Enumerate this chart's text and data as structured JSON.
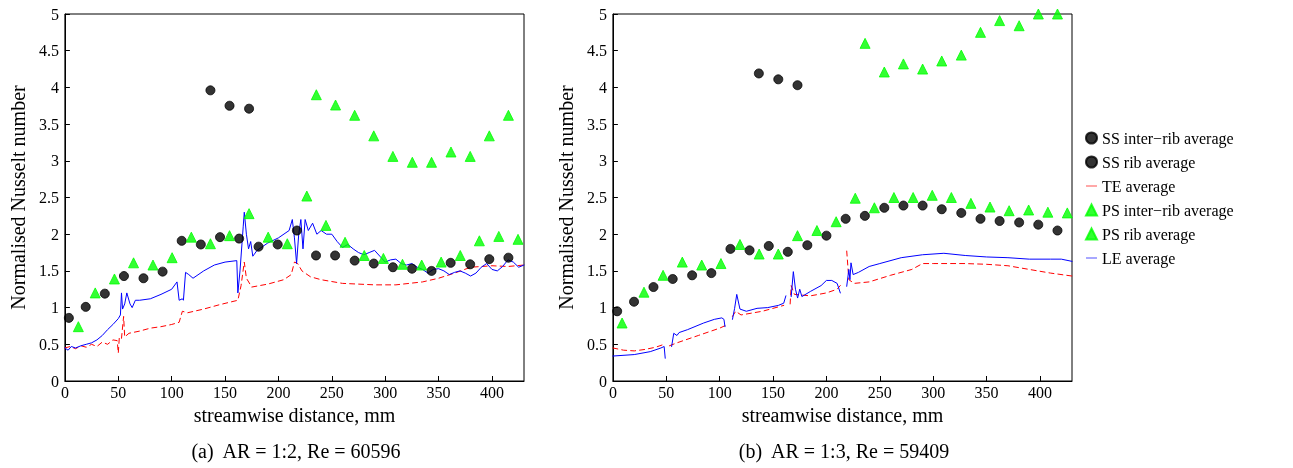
{
  "chart_data": [
    {
      "type": "scatter",
      "title": "(a)  AR = 1:2, Re = 60596",
      "xlabel": "streamwise distance, mm",
      "ylabel": "Normalised Nusselt number",
      "xlim": [
        0,
        430
      ],
      "xticks": [
        0,
        50,
        100,
        150,
        200,
        250,
        300,
        350,
        400
      ],
      "ylim": [
        0,
        5
      ],
      "yticks": [
        0,
        0.5,
        1,
        1.5,
        2,
        2.5,
        3,
        3.5,
        4,
        4.5,
        5
      ],
      "grid": false,
      "legend": false,
      "series": [
        {
          "type": "scatter",
          "color": "#000000",
          "marker": "circle",
          "x": [
            3.7,
            19.5,
            37.4,
            55.3,
            73.6,
            91.5,
            109.4,
            127.3,
            145.3,
            163.2,
            181.4,
            199.3,
            217.3,
            235.2,
            253.1,
            271.4,
            289.3,
            307.2,
            325.1,
            343.4,
            361.3,
            379.6,
            397.5,
            415.4
          ],
          "values": [
            0.86,
            1.01,
            1.19,
            1.43,
            1.4,
            1.49,
            1.91,
            1.86,
            1.96,
            1.94,
            1.83,
            1.86,
            2.05,
            1.71,
            1.71,
            1.64,
            1.6,
            1.55,
            1.53,
            1.5,
            1.61,
            1.59,
            1.66,
            1.68
          ]
        },
        {
          "type": "scatter",
          "color": "#000000",
          "marker": "circle",
          "x": [
            136.3,
            154.2,
            172.5
          ],
          "values": [
            3.96,
            3.75,
            3.71
          ]
        },
        {
          "type": "line",
          "color": "#ff0000",
          "marker": "none",
          "line_style": "dashed",
          "x": [
            0,
            5,
            10,
            15,
            20,
            25,
            30,
            35,
            40,
            45,
            49,
            50,
            51,
            53,
            55,
            56,
            60,
            70,
            80,
            90,
            100,
            107,
            110,
            115,
            130,
            145,
            162,
            165,
            168,
            170,
            175,
            190,
            205,
            212,
            215,
            218,
            222,
            230,
            240,
            260,
            290,
            310,
            335,
            350,
            365,
            380,
            400,
            415,
            430
          ],
          "values": [
            0.45,
            0.47,
            0.44,
            0.48,
            0.46,
            0.5,
            0.47,
            0.53,
            0.5,
            0.56,
            0.55,
            0.38,
            0.6,
            0.58,
            0.88,
            0.6,
            0.65,
            0.68,
            0.72,
            0.74,
            0.77,
            0.8,
            0.95,
            0.93,
            0.98,
            1.04,
            1.1,
            1.3,
            1.62,
            1.4,
            1.28,
            1.32,
            1.38,
            1.45,
            1.62,
            1.6,
            1.5,
            1.42,
            1.38,
            1.33,
            1.31,
            1.31,
            1.35,
            1.4,
            1.47,
            1.55,
            1.57,
            1.56,
            1.58
          ]
        },
        {
          "type": "scatter",
          "color": "#00ff00",
          "marker": "triangle",
          "x": [
            12.6,
            28.4,
            46.4,
            64.3,
            82.5,
            100.4,
            118.4,
            136.3,
            154.2,
            172.5,
            190.4,
            208.3,
            226.6,
            244.5,
            262.4,
            280.4,
            298.3,
            316.2,
            334.2,
            352.4,
            370.3,
            388.2,
            406.4,
            424.4
          ],
          "values": [
            0.74,
            1.2,
            1.39,
            1.61,
            1.58,
            1.68,
            1.96,
            1.87,
            1.98,
            2.28,
            1.96,
            1.87,
            2.52,
            2.12,
            1.89,
            1.71,
            1.67,
            1.59,
            1.58,
            1.62,
            1.71,
            1.91,
            1.97,
            1.93
          ]
        },
        {
          "type": "scatter",
          "color": "#00ff00",
          "marker": "triangle",
          "x": [
            235.5,
            253.5,
            271.4,
            289.3,
            307.2,
            325.4,
            343.4,
            361.6,
            379.6,
            397.5,
            415.4
          ],
          "values": [
            3.9,
            3.76,
            3.62,
            3.34,
            3.06,
            2.98,
            2.98,
            3.12,
            3.06,
            3.34,
            3.62
          ]
        },
        {
          "type": "line",
          "color": "#0000ff",
          "marker": "none",
          "line_style": "solid",
          "x": [
            0,
            3,
            6,
            10,
            15,
            20,
            25,
            30,
            35,
            40,
            45,
            50,
            52,
            53,
            54,
            56,
            58,
            61,
            63,
            66,
            70,
            80,
            90,
            100,
            105,
            107,
            110,
            111,
            113,
            116,
            120,
            130,
            140,
            150,
            161,
            162,
            164,
            167,
            168,
            170,
            172,
            174,
            176,
            180,
            190,
            200,
            210,
            213,
            215,
            217,
            219,
            221,
            223,
            225,
            228,
            232,
            236,
            240,
            245,
            250,
            255,
            260,
            265,
            270,
            275,
            280,
            285,
            290,
            295,
            300,
            305,
            310,
            315,
            320,
            325,
            330,
            335,
            340,
            345,
            350,
            355,
            360,
            365,
            370,
            375,
            380,
            385,
            390,
            395,
            400,
            405,
            410,
            415,
            420,
            425,
            430
          ],
          "values": [
            0.45,
            0.42,
            0.47,
            0.45,
            0.48,
            0.5,
            0.52,
            0.56,
            0.62,
            0.7,
            0.77,
            0.85,
            0.9,
            1.2,
            0.98,
            1.05,
            1.2,
            1.05,
            1.0,
            1.1,
            1.1,
            1.12,
            1.18,
            1.25,
            1.35,
            1.1,
            1.12,
            1.1,
            1.48,
            1.45,
            1.4,
            1.5,
            1.58,
            1.62,
            1.64,
            1.2,
            1.5,
            2.1,
            2.3,
            2.0,
            1.8,
            1.9,
            1.7,
            1.78,
            1.88,
            1.95,
            2.05,
            2.2,
            1.95,
            1.6,
            2.0,
            2.2,
            1.8,
            2.2,
            2.05,
            2.15,
            2.0,
            2.05,
            2.0,
            2.0,
            1.9,
            1.82,
            1.86,
            1.8,
            1.75,
            1.72,
            1.75,
            1.78,
            1.7,
            1.62,
            1.65,
            1.66,
            1.6,
            1.58,
            1.6,
            1.55,
            1.52,
            1.47,
            1.52,
            1.53,
            1.5,
            1.45,
            1.48,
            1.5,
            1.47,
            1.43,
            1.47,
            1.55,
            1.6,
            1.52,
            1.5,
            1.56,
            1.65,
            1.62,
            1.55,
            1.58
          ]
        }
      ]
    },
    {
      "type": "scatter",
      "title": "(b)  AR = 1:3, Re = 59409",
      "xlabel": "streamwise distance, mm",
      "ylabel": "Normalised Nusselt number",
      "xlim": [
        0,
        430
      ],
      "xticks": [
        0,
        50,
        100,
        150,
        200,
        250,
        300,
        350,
        400
      ],
      "ylim": [
        0,
        5
      ],
      "yticks": [
        0,
        0.5,
        1,
        1.5,
        2,
        2.5,
        3,
        3.5,
        4,
        4.5,
        5
      ],
      "grid": false,
      "legend": "right",
      "series": [
        {
          "name": "SS inter−rib average",
          "type": "scatter",
          "color": "#000000",
          "marker": "circle",
          "x": [
            4.0,
            19.8,
            38.0,
            56.0,
            74.2,
            92.2,
            110.1,
            128.0,
            146.0,
            163.8,
            182.1,
            200.0,
            218.0,
            236.0,
            254.2,
            272.1,
            290.1,
            308.0,
            326.3,
            344.3,
            362.2,
            380.5,
            398.4,
            416.4
          ],
          "values": [
            0.95,
            1.08,
            1.28,
            1.39,
            1.44,
            1.47,
            1.8,
            1.78,
            1.84,
            1.76,
            1.85,
            1.98,
            2.21,
            2.25,
            2.36,
            2.39,
            2.39,
            2.34,
            2.29,
            2.21,
            2.18,
            2.16,
            2.13,
            2.05
          ]
        },
        {
          "name": "SS rib average",
          "type": "scatter",
          "color": "#000000",
          "marker": "circle",
          "x": [
            136.7,
            154.9,
            172.9
          ],
          "values": [
            4.19,
            4.11,
            4.03
          ]
        },
        {
          "name": "TE average",
          "type": "line",
          "color": "#ff0000",
          "marker": "none",
          "line_style": "dashed",
          "x": [
            0,
            10,
            20,
            30,
            40,
            48,
            50,
            53,
            60,
            80,
            100,
            106,
            109,
            112,
            115,
            120,
            140,
            160,
            163,
            166,
            167,
            170,
            185,
            200,
            210,
            213,
            216,
            219,
            221,
            226,
            240,
            260,
            280,
            290,
            300,
            330,
            350,
            370,
            390,
            410,
            430
          ],
          "values": [
            0.45,
            0.42,
            0.41,
            0.43,
            0.46,
            0.5,
            null,
            0.48,
            0.52,
            0.62,
            0.72,
            0.76,
            null,
            0.88,
            0.95,
            0.9,
            0.95,
            1.03,
            null,
            1.05,
            1.3,
            1.18,
            1.16,
            1.2,
            1.25,
            1.3,
            null,
            1.77,
            1.38,
            1.33,
            1.35,
            1.44,
            1.52,
            1.6,
            1.6,
            1.6,
            1.59,
            1.57,
            1.52,
            1.47,
            1.43
          ]
        },
        {
          "name": "PS inter−rib average",
          "type": "scatter",
          "color": "#00ff00",
          "marker": "triangle",
          "x": [
            8.6,
            29.1,
            47.0,
            65.0,
            83.2,
            101.2,
            119.0,
            137.0,
            154.9,
            172.9,
            191.1,
            209.1,
            227.0,
            244.9,
            263.2,
            281.2,
            299.1,
            317.0,
            335.3,
            353.2,
            371.1,
            389.4,
            407.4,
            425.6
          ],
          "values": [
            0.79,
            1.21,
            1.44,
            1.62,
            1.58,
            1.6,
            1.86,
            1.73,
            1.73,
            1.98,
            2.05,
            2.17,
            2.49,
            2.36,
            2.5,
            2.5,
            2.53,
            2.5,
            2.42,
            2.37,
            2.32,
            2.33,
            2.3,
            2.29
          ]
        },
        {
          "name": "PS rib average",
          "type": "scatter",
          "color": "#00ff00",
          "marker": "triangle",
          "x": [
            236.2,
            254.2,
            272.1,
            290.1,
            308.0,
            326.3,
            344.3,
            362.2,
            380.5,
            398.5,
            416.4
          ],
          "values": [
            4.6,
            4.21,
            4.32,
            4.25,
            4.36,
            4.44,
            4.75,
            4.91,
            4.84,
            5.0,
            5.0
          ]
        },
        {
          "name": "LE average",
          "type": "line",
          "color": "#0000ff",
          "marker": "none",
          "line_style": "solid",
          "x": [
            0,
            20,
            35,
            45,
            48,
            49,
            52,
            55,
            57,
            60,
            62,
            70,
            85,
            95,
            102,
            104,
            105,
            108,
            112,
            114,
            116,
            119,
            125,
            135,
            145,
            155,
            160,
            162,
            164,
            167,
            169,
            171,
            173,
            175,
            177,
            185,
            195,
            200,
            205,
            210,
            213,
            216,
            219,
            221,
            222,
            223,
            225,
            230,
            240,
            250,
            270,
            290,
            310,
            330,
            350,
            370,
            390,
            410,
            420,
            430
          ],
          "values": [
            0.34,
            0.36,
            0.4,
            0.45,
            0.47,
            0.31,
            null,
            0.47,
            0.65,
            0.62,
            0.66,
            0.7,
            0.79,
            0.84,
            0.86,
            0.84,
            0.74,
            null,
            0.84,
            0.99,
            1.18,
            0.98,
            0.95,
            0.99,
            1.0,
            1.03,
            1.06,
            1.16,
            null,
            1.15,
            1.49,
            1.25,
            1.13,
            1.25,
            1.15,
            1.22,
            1.3,
            1.37,
            1.37,
            1.33,
            1.2,
            null,
            1.29,
            1.52,
            1.38,
            1.61,
            1.45,
            1.48,
            1.56,
            1.6,
            1.68,
            1.72,
            1.74,
            1.71,
            1.69,
            1.68,
            1.66,
            1.66,
            1.66,
            1.63
          ]
        }
      ]
    }
  ]
}
